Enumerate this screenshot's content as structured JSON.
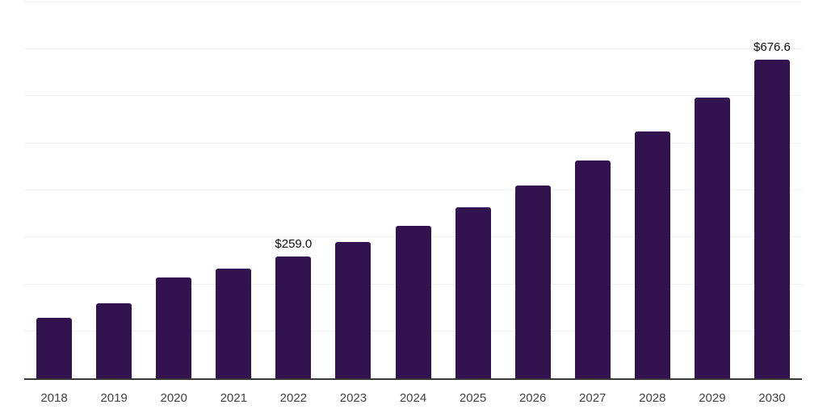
{
  "chart_data": {
    "type": "bar",
    "title": "",
    "xlabel": "",
    "ylabel": "",
    "categories": [
      "2018",
      "2019",
      "2020",
      "2021",
      "2022",
      "2023",
      "2024",
      "2025",
      "2026",
      "2027",
      "2028",
      "2029",
      "2030"
    ],
    "values": [
      128.9,
      159.5,
      214.9,
      232.5,
      259.0,
      289.8,
      323.4,
      362.8,
      409.5,
      462.4,
      524.0,
      595.5,
      676.6
    ],
    "data_labels": [
      {
        "category": "2022",
        "text": "$259.0"
      },
      {
        "category": "2030",
        "text": "$676.6"
      }
    ],
    "ylim": [
      0,
      800
    ],
    "grid_step": 100,
    "grid": true,
    "legend": false,
    "y_tick_labels_shown": false,
    "colors": {
      "bar": "#331250",
      "axis": "#383838",
      "gridline": "#F1F1F1",
      "tick_label": "#424242",
      "data_label": "#0D0D0D",
      "background": "#FFFFFF"
    }
  }
}
